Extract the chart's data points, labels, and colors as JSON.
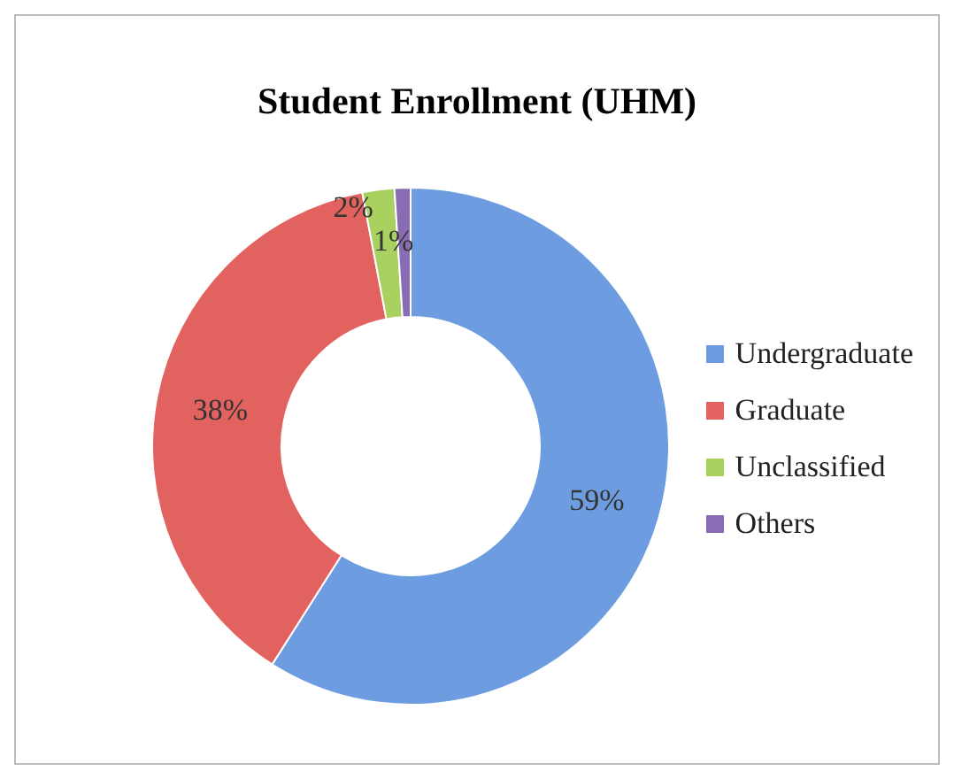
{
  "chart_data": {
    "type": "donut",
    "title": "Student Enrollment (UHM)",
    "categories": [
      "Undergraduate",
      "Graduate",
      "Unclassified",
      "Others"
    ],
    "values": [
      59,
      38,
      2,
      1
    ],
    "colors": [
      "#6d9de0",
      "#e2625f",
      "#a9d160",
      "#8a6cb4"
    ],
    "value_labels": [
      "59%",
      "38%",
      "2%",
      "1%"
    ],
    "legend": "right"
  }
}
